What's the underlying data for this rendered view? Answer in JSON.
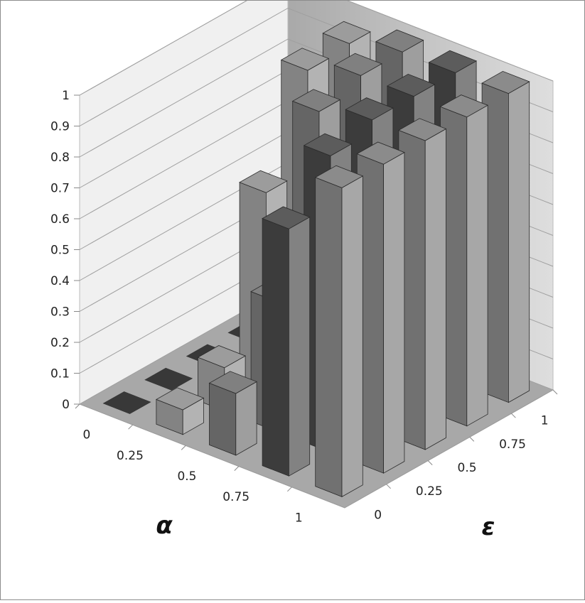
{
  "chart_data": {
    "type": "bar3d",
    "title": "",
    "xlabel": "α",
    "ylabel": "ε",
    "zlabel": "",
    "x_categories": [
      "1",
      "0.75",
      "0.5",
      "0.25",
      "0"
    ],
    "y_categories": [
      "0",
      "0.25",
      "0.5",
      "0.75",
      "1"
    ],
    "z_ticks": [
      "0",
      "0.1",
      "0.2",
      "0.3",
      "0.4",
      "0.5",
      "0.6",
      "0.7",
      "0.8",
      "0.9",
      "1"
    ],
    "zlim": [
      0,
      1
    ],
    "grid": true,
    "values": [
      [
        1,
        1,
        1,
        1,
        1
      ],
      [
        0.8,
        0.96,
        1,
        1,
        1
      ],
      [
        0.2,
        0.42,
        0.96,
        1,
        1
      ],
      [
        0.08,
        0.14,
        0.63,
        0.95,
        0.96
      ],
      [
        0,
        0,
        0,
        0,
        0
      ]
    ],
    "colors": {
      "alpha_1": "#777777",
      "alpha_0.75": "#3f3f3f",
      "alpha_0.5": "#6a6a6a",
      "alpha_0.25": "#8a8a8a",
      "alpha_0": "#4a4a4a",
      "back_wall": "#f0f0f0",
      "side_wall": "#c8c8c8",
      "floor": "#a8a8a8"
    }
  }
}
